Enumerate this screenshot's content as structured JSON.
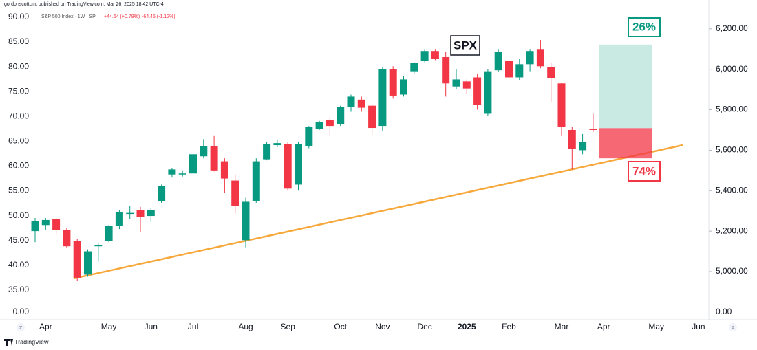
{
  "header": {
    "publisher": "gordonscottcmt published on TradingView.com, Mar 26, 2025 18:42 UTC-4",
    "symbol": "S&P 500 Index · 1W · SP",
    "change_up": "+44.64 (+0.79%)",
    "change_down": "-64.45 (-1.12%)"
  },
  "footer": {
    "brand": "TradingView",
    "left_button": "Z",
    "right_button": "A"
  },
  "chart_data": {
    "type": "candlestick",
    "annotation": "SPX",
    "categories": [
      null,
      "Apr",
      null,
      null,
      null,
      null,
      null,
      "May",
      null,
      null,
      null,
      "Jun",
      null,
      null,
      null,
      "Jul",
      null,
      null,
      null,
      null,
      "Aug",
      null,
      null,
      null,
      "Sep",
      null,
      null,
      null,
      null,
      "Oct",
      null,
      null,
      null,
      "Nov",
      null,
      null,
      null,
      "Dec",
      null,
      null,
      null,
      "2025",
      null,
      null,
      null,
      "Feb",
      null,
      null,
      null,
      null,
      "Mar",
      null,
      null,
      null,
      "Apr",
      null,
      null,
      null,
      null,
      "May",
      null,
      null,
      null,
      "Jun"
    ],
    "open": [
      5200,
      5230,
      5260,
      5205,
      5150,
      4985,
      5125,
      5150,
      5225,
      5285,
      5305,
      5275,
      5349,
      5480,
      5480,
      5485,
      5570,
      5620,
      5545,
      5450,
      5155,
      5350,
      5555,
      5625,
      5630,
      5430,
      5620,
      5705,
      5750,
      5730,
      5815,
      5850,
      5820,
      5720,
      6000,
      5875,
      5990,
      6040,
      6090,
      6060,
      5915,
      5940,
      5960,
      5780,
      5995,
      6040,
      5960,
      6025,
      6100,
      6010,
      5930,
      5700,
      5600,
      5705,
      null,
      null,
      null,
      null,
      null,
      null,
      null,
      null,
      null,
      null
    ],
    "high": [
      5265,
      5265,
      5265,
      5215,
      5160,
      5110,
      5140,
      5230,
      5305,
      5325,
      5320,
      5315,
      5430,
      5510,
      5500,
      5590,
      5655,
      5670,
      5560,
      5480,
      5365,
      5560,
      5640,
      5650,
      5640,
      5640,
      5720,
      5745,
      5765,
      5820,
      5875,
      5865,
      5830,
      6010,
      6015,
      5965,
      6035,
      6100,
      6100,
      6085,
      6000,
      5950,
      5975,
      6000,
      6100,
      6085,
      6050,
      6100,
      6145,
      6030,
      5935,
      5715,
      5680,
      5780,
      null,
      null,
      null,
      null,
      null,
      null,
      null,
      null,
      null,
      null
    ],
    "low": [
      5145,
      5205,
      5185,
      5115,
      4955,
      4975,
      5050,
      5145,
      5210,
      5260,
      5195,
      5245,
      5340,
      5465,
      5470,
      5480,
      5560,
      5495,
      5390,
      5287,
      5120,
      5340,
      5550,
      5615,
      5400,
      5400,
      5610,
      5700,
      5670,
      5720,
      5790,
      5790,
      5675,
      5695,
      5855,
      5865,
      5980,
      6035,
      6045,
      5865,
      5900,
      5880,
      5800,
      5770,
      5985,
      5950,
      5945,
      5990,
      6005,
      5840,
      5670,
      5505,
      5580,
      5690,
      null,
      null,
      null,
      null,
      null,
      null,
      null,
      null,
      null,
      null
    ],
    "close": [
      5250,
      5255,
      5205,
      5125,
      4970,
      5100,
      5130,
      5225,
      5295,
      5290,
      5270,
      5305,
      5423,
      5505,
      5485,
      5580,
      5620,
      5500,
      5460,
      5325,
      5345,
      5545,
      5630,
      5635,
      5410,
      5630,
      5715,
      5740,
      5720,
      5815,
      5865,
      5810,
      5710,
      6000,
      5870,
      5950,
      6030,
      6090,
      6050,
      5930,
      5950,
      5905,
      5825,
      5990,
      6085,
      5960,
      6025,
      6090,
      6015,
      5955,
      5715,
      5605,
      5640,
      5700,
      null,
      null,
      null,
      null,
      null,
      null,
      null,
      null,
      null,
      null
    ],
    "up_color": "#089981",
    "down_color": "#f23645",
    "ylim": [
      4830,
      6315
    ],
    "yticks": [
      {
        "value": 5000,
        "label": "5,000.00"
      },
      {
        "value": 5200,
        "label": "5,200.00"
      },
      {
        "value": 5400,
        "label": "5,400.00"
      },
      {
        "value": 5600,
        "label": "5,600.00"
      },
      {
        "value": 5800,
        "label": "5,800.00"
      },
      {
        "value": 6000,
        "label": "6,000.00"
      },
      {
        "value": 6200,
        "label": "6,200.00"
      }
    ],
    "y_bottom_label": "0.00",
    "y2lim": [
      31.8,
      92.35
    ],
    "y2ticks": [
      {
        "value": 35,
        "label": "35.00"
      },
      {
        "value": 40,
        "label": "40.00"
      },
      {
        "value": 45,
        "label": "45.00"
      },
      {
        "value": 50,
        "label": "50.00"
      },
      {
        "value": 55,
        "label": "55.00"
      },
      {
        "value": 60,
        "label": "60.00"
      },
      {
        "value": 65,
        "label": "65.00"
      },
      {
        "value": 70,
        "label": "70.00"
      },
      {
        "value": 75,
        "label": "75.00"
      },
      {
        "value": 80,
        "label": "80.00"
      },
      {
        "value": 85,
        "label": "85.00"
      },
      {
        "value": 90,
        "label": "90.00"
      }
    ],
    "y2_bottom_label": "0.00",
    "position": {
      "target": 6122,
      "entry": 5709,
      "stop": 5560,
      "reward_label": "26%",
      "risk_label": "74%"
    }
  }
}
